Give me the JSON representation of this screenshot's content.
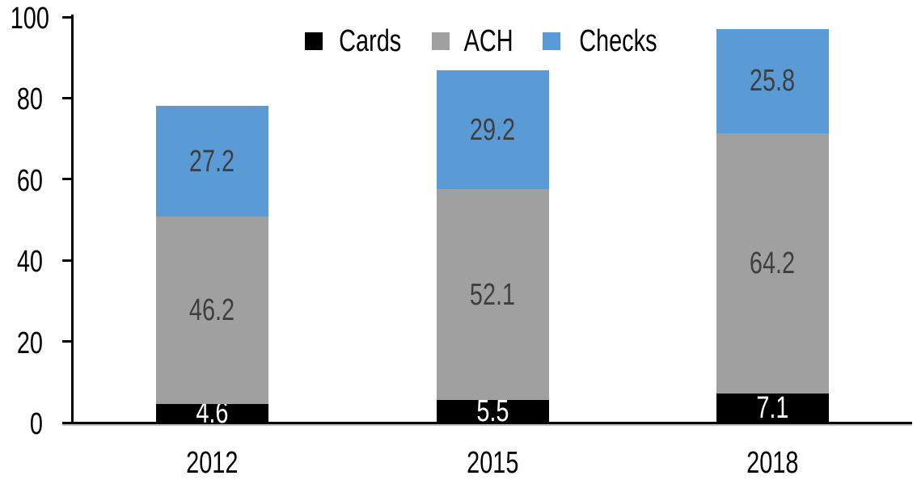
{
  "chart_data": {
    "type": "bar",
    "stacked": true,
    "title": "",
    "xlabel": "",
    "ylabel": "",
    "categories": [
      "2012",
      "2015",
      "2018"
    ],
    "series": [
      {
        "name": "Cards",
        "values": [
          4.6,
          5.5,
          7.1
        ],
        "color": "#000000",
        "label_color": "#FFFFFF"
      },
      {
        "name": "ACH",
        "values": [
          46.2,
          52.1,
          64.2
        ],
        "color": "#A0A0A0",
        "label_color": "#3F3F3F"
      },
      {
        "name": "Checks",
        "values": [
          27.2,
          29.2,
          25.8
        ],
        "color": "#5B9BD5",
        "label_color": "#3F3F3F"
      }
    ],
    "stack_totals": [
      78.0,
      86.8,
      97.1
    ],
    "ylim": [
      0,
      100
    ],
    "yticks": [
      0,
      20,
      40,
      60,
      80,
      100
    ],
    "grid": false,
    "data_labels": true,
    "data_label_decimals": 1,
    "legend_position": "top-center",
    "axis_color": "#000000",
    "background_color": "#FFFFFF"
  }
}
